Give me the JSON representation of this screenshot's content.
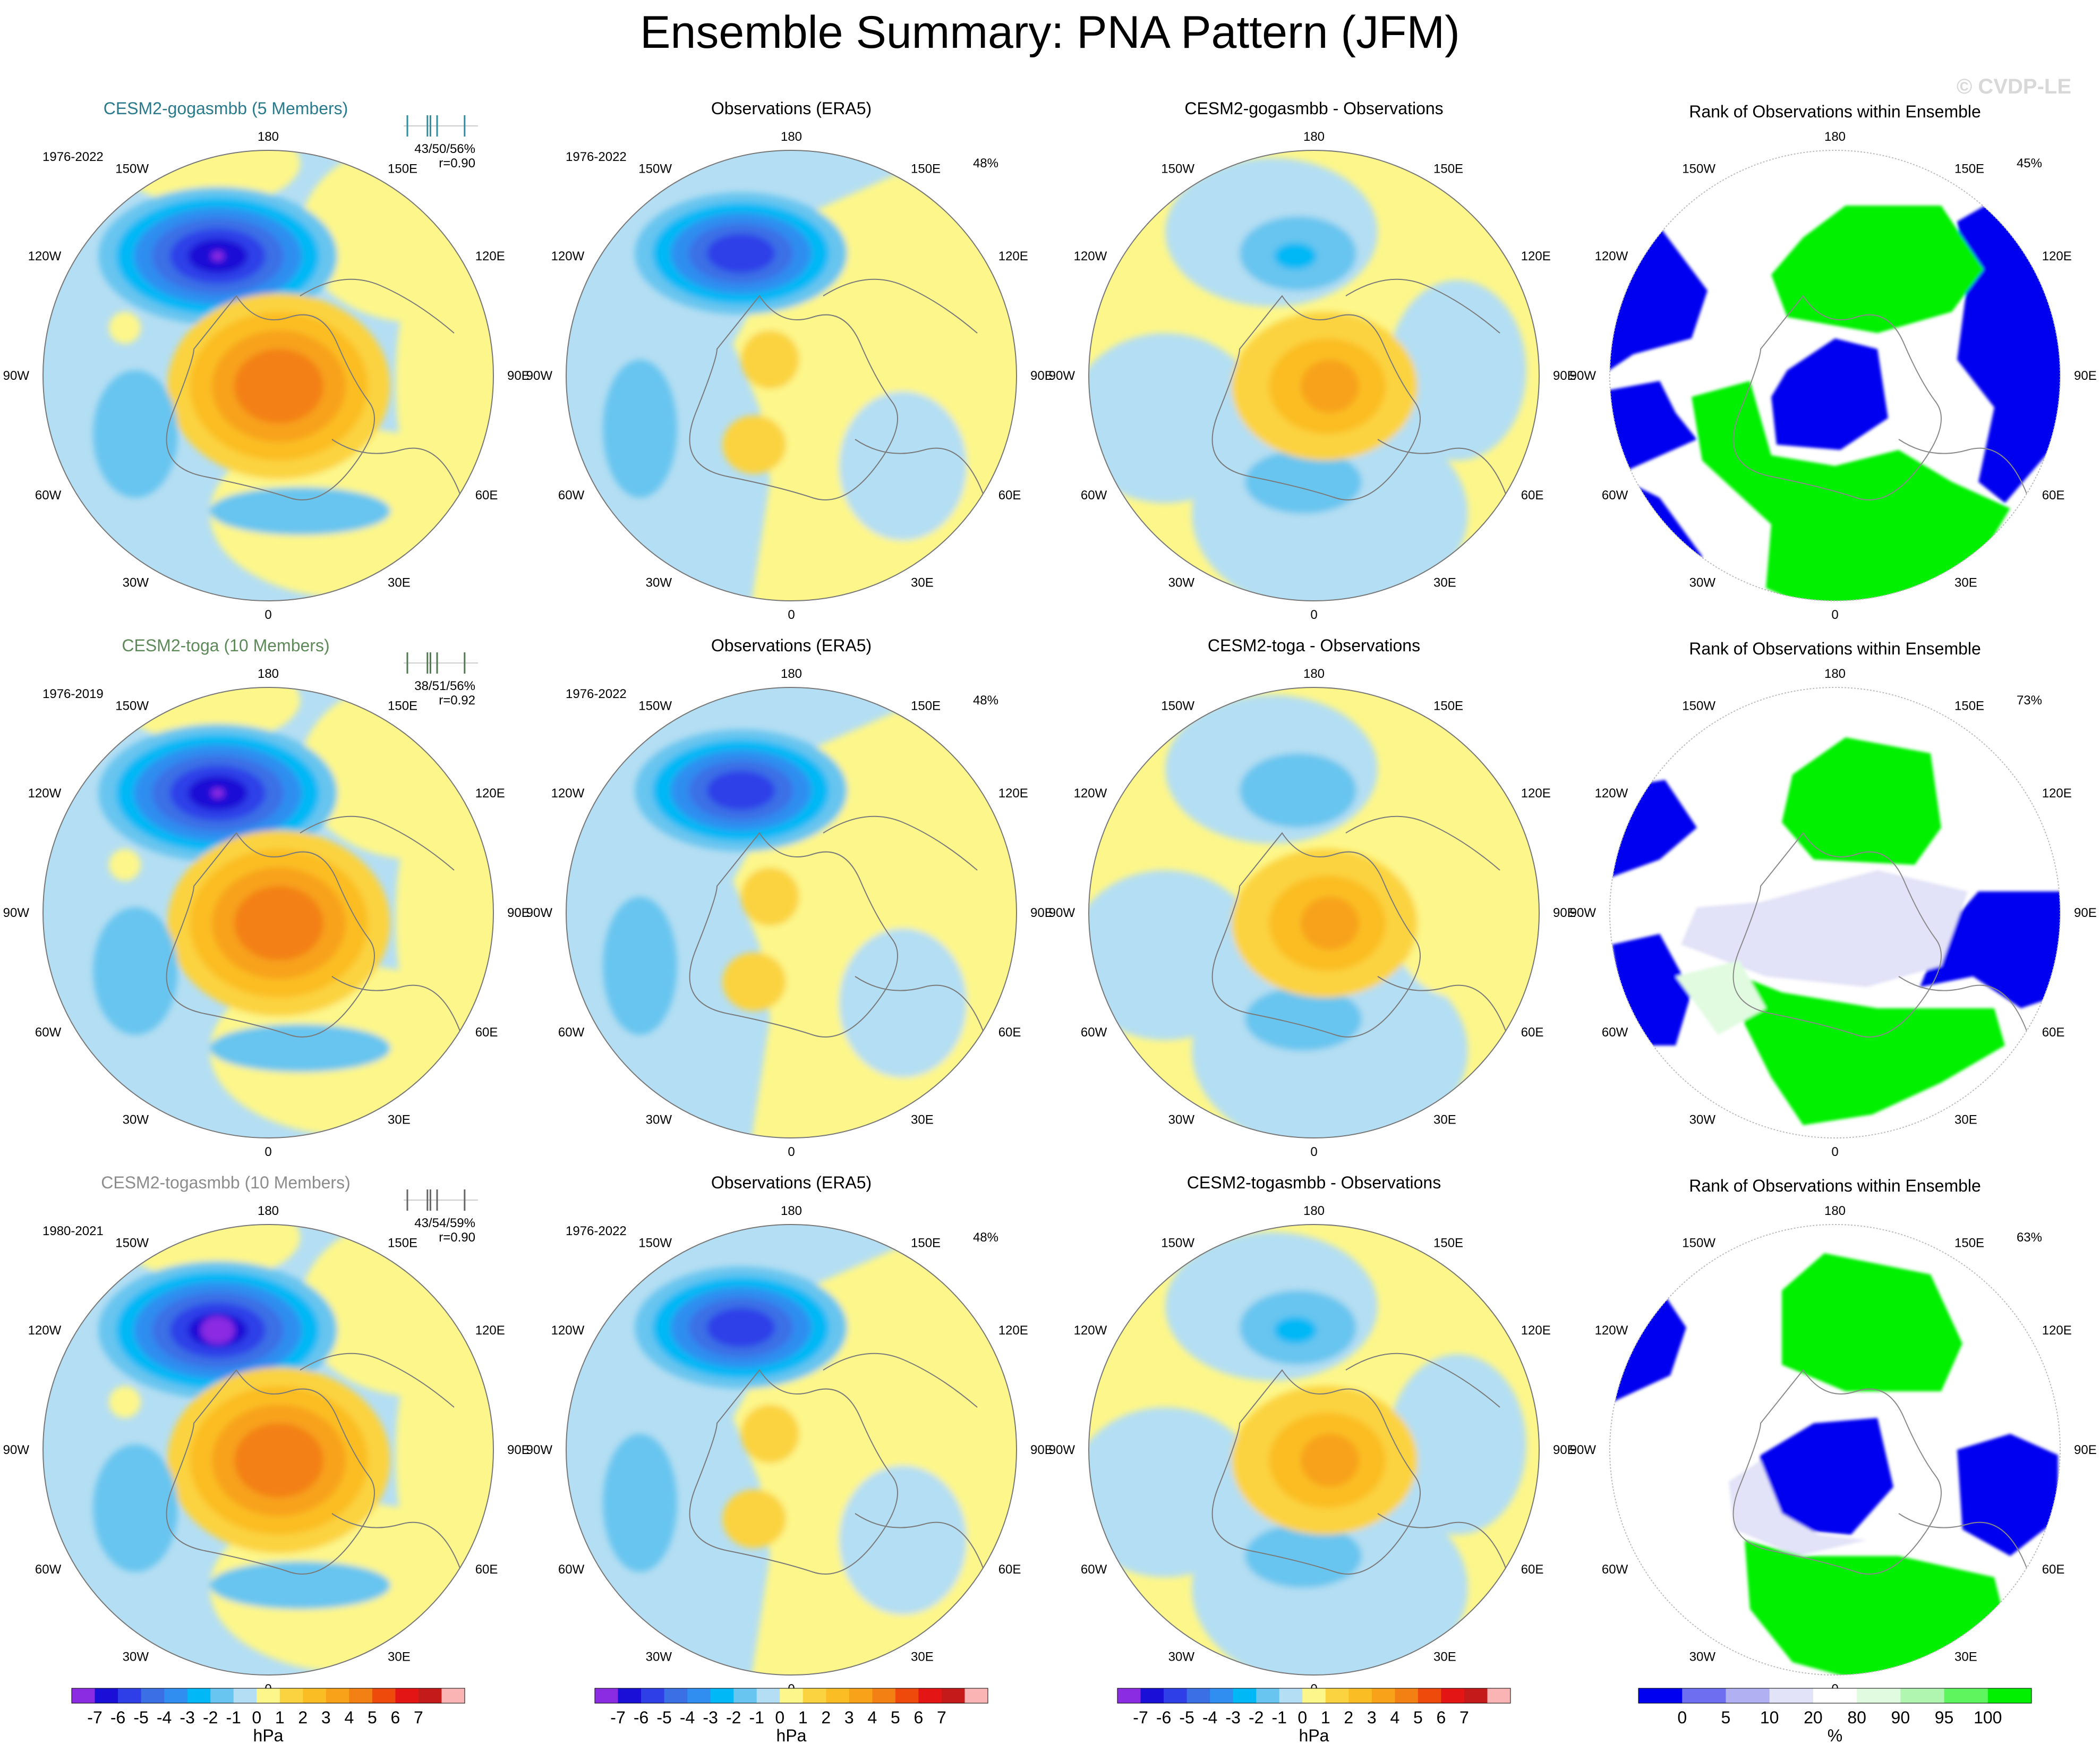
{
  "title": "Ensemble Summary: PNA Pattern (JFM)",
  "watermark": "© CVDP-LE",
  "lon_labels": [
    "180",
    "150E",
    "120E",
    "90E",
    "60E",
    "30E",
    "0",
    "30W",
    "60W",
    "90W",
    "120W",
    "150W"
  ],
  "rows": [
    {
      "model": {
        "title": "CESM2-gogasmbb (5 Members)",
        "title_color": "#2a7a8c",
        "years": "1976-2022",
        "stats": "43/50/56%",
        "r": "r=0.90",
        "bar_color": "#2a8fa0"
      },
      "obs": {
        "title": "Observations (ERA5)",
        "years": "1976-2022",
        "pct": "48%"
      },
      "diff": {
        "title": "CESM2-gogasmbb - Observations"
      },
      "rank": {
        "title": "Rank of Observations within Ensemble",
        "pct": "45%"
      }
    },
    {
      "model": {
        "title": "CESM2-toga (10 Members)",
        "title_color": "#5e8a5a",
        "years": "1976-2019",
        "stats": "38/51/56%",
        "r": "r=0.92",
        "bar_color": "#4f7a4c"
      },
      "obs": {
        "title": "Observations (ERA5)",
        "years": "1976-2022",
        "pct": "48%"
      },
      "diff": {
        "title": "CESM2-toga - Observations"
      },
      "rank": {
        "title": "Rank of Observations within Ensemble",
        "pct": "73%"
      }
    },
    {
      "model": {
        "title": "CESM2-togasmbb (10 Members)",
        "title_color": "#8c8c8c",
        "years": "1980-2021",
        "stats": "43/54/59%",
        "r": "r=0.90",
        "bar_color": "#666666"
      },
      "obs": {
        "title": "Observations (ERA5)",
        "years": "1976-2022",
        "pct": "48%"
      },
      "diff": {
        "title": "CESM2-togasmbb - Observations"
      },
      "rank": {
        "title": "Rank of Observations within Ensemble",
        "pct": "63%"
      }
    }
  ],
  "chart_data": [
    {
      "type": "heatmap",
      "description": "PNA pattern regression maps (hPa), polar stereographic Northern Hemisphere",
      "colorbar": {
        "label": "hPa",
        "levels": [
          -7,
          -6,
          -5,
          -4,
          -3,
          -2,
          -1,
          0,
          1,
          2,
          3,
          4,
          5,
          6,
          7
        ],
        "tick_labels": [
          "-7",
          "-6",
          "-5",
          "-4",
          "-3",
          "-2",
          "-1",
          "0",
          "1",
          "2",
          "3",
          "4",
          "5",
          "6",
          "7"
        ],
        "colors": [
          "#8b2be2",
          "#1a0fd6",
          "#2f3fe8",
          "#3a6fe6",
          "#2f8ef0",
          "#00b8f5",
          "#68c5ef",
          "#b4def3",
          "#fdf68a",
          "#fbd340",
          "#fbbd24",
          "#f8a21a",
          "#f38012",
          "#ed4a0c",
          "#e31515",
          "#c41a1a",
          "#fbb4b4"
        ]
      },
      "centers_hPa": {
        "model_row1": {
          "north_pacific_low": -7,
          "north_america_high": 5
        },
        "obs": {
          "north_pacific_low": -6,
          "north_america_high": 2
        },
        "diff_row1": {
          "north_pacific": -3,
          "north_america": 4
        }
      }
    },
    {
      "type": "heatmap",
      "description": "Rank of observations within ensemble (%)",
      "colorbar": {
        "label": "%",
        "tick_labels": [
          "0",
          "5",
          "10",
          "20",
          "80",
          "90",
          "95",
          "100"
        ],
        "colors": [
          "#0000f0",
          "#6e6ef0",
          "#b0b0f2",
          "#e2e2f8",
          "#ffffff",
          "#e0fbe0",
          "#b0f5b0",
          "#5ef55e",
          "#00f000"
        ]
      }
    }
  ]
}
